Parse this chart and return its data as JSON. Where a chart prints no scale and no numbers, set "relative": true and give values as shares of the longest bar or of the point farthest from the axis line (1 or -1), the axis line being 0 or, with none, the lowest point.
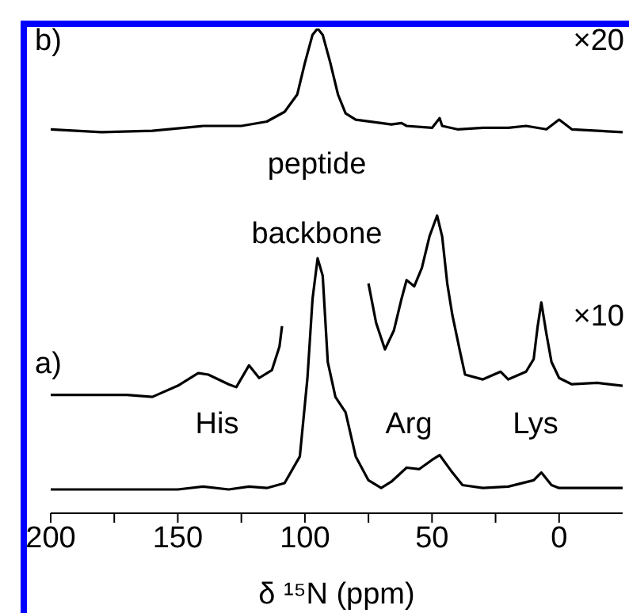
{
  "chart_data": {
    "type": "line",
    "relative": true,
    "xlabel": "δ ¹⁵N (ppm)",
    "xlim": [
      200,
      -25
    ],
    "xticks": [
      200,
      {
        "value": 175,
        "label": null
      },
      150,
      {
        "value": 125,
        "label": null
      },
      100,
      {
        "value": 75,
        "label": null
      },
      50,
      {
        "value": 25,
        "label": null
      },
      0
    ],
    "tick_labels": "x",
    "grid": false,
    "legend": false,
    "marker": "none",
    "line_style": "solid",
    "series": [
      {
        "color": "#000000",
        "x": [
          200,
          150,
          140,
          130,
          122,
          115,
          108,
          102,
          99,
          97,
          95,
          93,
          91,
          88,
          84,
          80,
          75,
          70,
          66,
          60,
          55,
          50,
          47,
          42,
          38,
          30,
          20,
          10,
          7,
          3,
          0,
          -10,
          -25
        ],
        "values": [
          0.049,
          0.049,
          0.055,
          0.049,
          0.055,
          0.052,
          0.062,
          0.117,
          0.279,
          0.442,
          0.526,
          0.49,
          0.312,
          0.24,
          0.208,
          0.117,
          0.068,
          0.052,
          0.065,
          0.094,
          0.091,
          0.11,
          0.12,
          0.084,
          0.058,
          0.052,
          0.055,
          0.068,
          0.084,
          0.058,
          0.052,
          0.052,
          0.052
        ]
      },
      {
        "color": "#000000",
        "x": [
          200,
          170,
          160,
          150,
          142,
          138,
          130,
          127,
          122,
          118,
          113,
          110,
          109
        ],
        "values": [
          0.244,
          0.244,
          0.24,
          0.263,
          0.289,
          0.286,
          0.266,
          0.26,
          0.305,
          0.279,
          0.295,
          0.344,
          0.386
        ]
      },
      {
        "color": "#000000",
        "x": [
          75,
          72,
          68.5,
          65,
          62,
          60,
          57,
          54,
          51,
          48,
          46,
          44,
          42,
          39,
          37,
          30,
          23,
          20,
          13,
          10,
          8.5,
          7,
          5,
          3,
          0,
          -5,
          -15,
          -25
        ],
        "values": [
          0.474,
          0.393,
          0.338,
          0.377,
          0.442,
          0.481,
          0.468,
          0.506,
          0.571,
          0.614,
          0.571,
          0.474,
          0.409,
          0.334,
          0.286,
          0.276,
          0.292,
          0.276,
          0.292,
          0.318,
          0.383,
          0.435,
          0.37,
          0.312,
          0.279,
          0.266,
          0.269,
          0.263
        ]
      },
      {
        "color": "#000000",
        "x": [
          200,
          180,
          160,
          140,
          125,
          115,
          108,
          103,
          100,
          97,
          95,
          93,
          90,
          87,
          84,
          80,
          70,
          66,
          62,
          60,
          50,
          47,
          46,
          40,
          30,
          20,
          13,
          5,
          0,
          -5,
          -25
        ],
        "values": [
          0.792,
          0.786,
          0.789,
          0.799,
          0.799,
          0.808,
          0.828,
          0.864,
          0.929,
          0.987,
          1,
          0.987,
          0.929,
          0.864,
          0.825,
          0.812,
          0.805,
          0.802,
          0.805,
          0.799,
          0.795,
          0.815,
          0.799,
          0.792,
          0.795,
          0.795,
          0.799,
          0.792,
          0.812,
          0.792,
          0.786
        ]
      }
    ],
    "annotations": [
      "b)",
      "×20",
      "peptide",
      "backbone",
      "a)",
      "×10",
      "His",
      "Arg",
      "Lys"
    ]
  }
}
